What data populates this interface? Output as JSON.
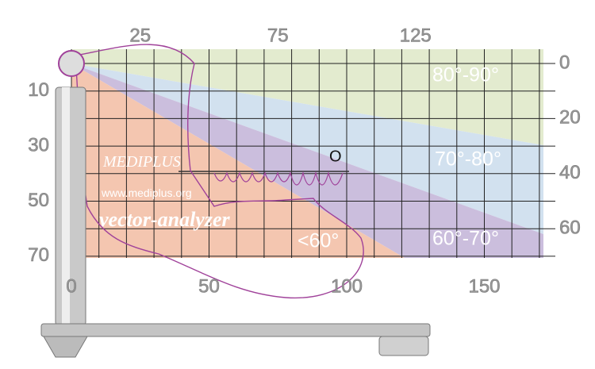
{
  "axes": {
    "top": [
      25,
      75,
      125
    ],
    "bottom": [
      0,
      50,
      100,
      150
    ],
    "left": [
      10,
      30,
      50,
      70
    ],
    "right": [
      0,
      20,
      40,
      60
    ]
  },
  "zones": [
    "80°-90°",
    "70°-80°",
    "60°-70°",
    "<60°"
  ],
  "origin_label": "O",
  "brand": {
    "name": "MEDIPLUS",
    "url": "www.mediplus.org",
    "product": "vector-analyzer"
  }
}
